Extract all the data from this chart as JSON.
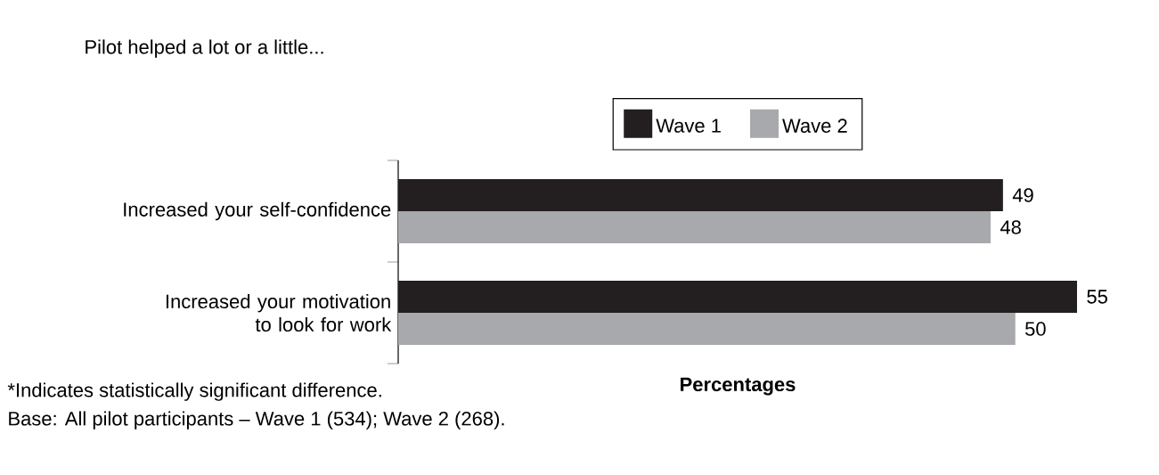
{
  "chart_data": {
    "type": "bar",
    "orientation": "horizontal",
    "title": "Pilot helped a lot or a little...",
    "xlabel": "Percentages",
    "categories": [
      "Increased your self-confidence",
      "Increased your motivation to look for work"
    ],
    "series": [
      {
        "name": "Wave 1",
        "color": "#231f20",
        "values": [
          49,
          55
        ]
      },
      {
        "name": "Wave 2",
        "color": "#a7a9ac",
        "values": [
          48,
          50
        ]
      }
    ],
    "data_labels": true,
    "legend": "top",
    "annotations": [
      "*Indicates statistically significant difference.",
      "Base: All pilot participants – Wave 1 (534); Wave 2 (268)."
    ]
  }
}
